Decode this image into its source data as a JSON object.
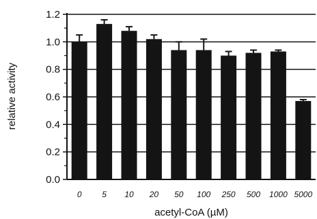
{
  "chart_data": {
    "type": "bar",
    "title": "",
    "xlabel": "acetyl-CoA (µM)",
    "ylabel": "relative activity",
    "categories": [
      "0",
      "5",
      "10",
      "20",
      "50",
      "100",
      "250",
      "500",
      "1000",
      "5000"
    ],
    "values": [
      1.0,
      1.13,
      1.08,
      1.02,
      0.94,
      0.94,
      0.9,
      0.92,
      0.93,
      0.57
    ],
    "errors": [
      0.05,
      0.03,
      0.03,
      0.03,
      0.06,
      0.08,
      0.03,
      0.02,
      0.01,
      0.01
    ],
    "ylim": [
      0.0,
      1.2
    ],
    "yticks": [
      "0.0",
      "0.2",
      "0.4",
      "0.6",
      "0.8",
      "1.0",
      "1.2"
    ],
    "grid": "horizontal",
    "legend": "none",
    "colors": {
      "bar": "#141414",
      "grid": "#111111",
      "axis": "#111111"
    }
  }
}
